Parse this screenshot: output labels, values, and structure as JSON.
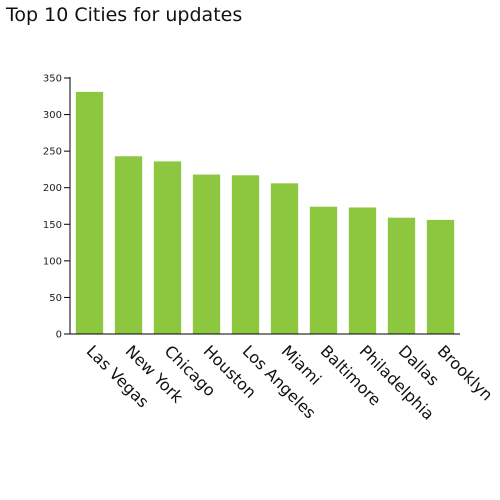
{
  "chart_data": {
    "type": "bar",
    "title": "Top 10 Cities for updates",
    "categories": [
      "Las Vegas",
      "New York",
      "Chicago",
      "Houston",
      "Los Angeles",
      "Miami",
      "Baltimore",
      "Philadelphia",
      "Dallas",
      "Brooklyn"
    ],
    "values": [
      331,
      243,
      236,
      218,
      217,
      206,
      174,
      173,
      159,
      156
    ],
    "ylim": [
      0,
      350
    ],
    "yticks": [
      0,
      50,
      100,
      150,
      200,
      250,
      300,
      350
    ],
    "xlabel": "",
    "ylabel": "",
    "grid": false,
    "bar_color": "#8dc63f"
  }
}
